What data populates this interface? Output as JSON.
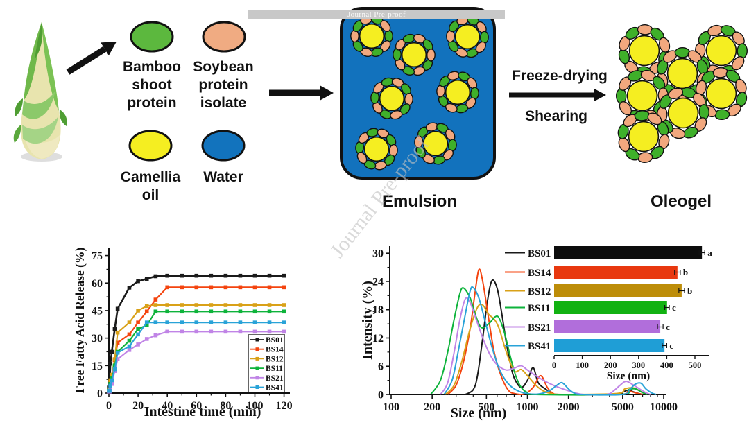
{
  "watermark": {
    "bar_text": "Journal Pre-proof",
    "diagonal_text": "Journal Pre-proof"
  },
  "diagram": {
    "ingredients": [
      {
        "name": "bamboo-shoot-protein",
        "label": [
          "Bamboo",
          "shoot",
          "protein"
        ],
        "color": "#5cb83e"
      },
      {
        "name": "soybean-protein-isolate",
        "label": [
          "Soybean",
          "protein",
          "isolate"
        ],
        "color": "#f0ab82"
      },
      {
        "name": "camellia-oil",
        "label": [
          "Camellia",
          "oil"
        ],
        "color": "#f5ee21"
      },
      {
        "name": "water",
        "label": [
          "Water"
        ],
        "color": "#1273bd"
      }
    ],
    "emulsion_label": "Emulsion",
    "oleogel_label": "Oleogel",
    "process_step1": "Freeze-drying",
    "process_step2": "Shearing",
    "emulsion_box_color": "#1272bd",
    "droplet_colors": {
      "oil": "#f5ee21",
      "coating_green": "#3fb02a",
      "coating_peach": "#f2a87e"
    }
  },
  "chart_data": [
    {
      "id": "ffa_release",
      "type": "line",
      "xlabel": "Intestine time (min)",
      "ylabel": "Free Fatty Acid Release (%)",
      "xlim": [
        0,
        124
      ],
      "ylim": [
        0,
        79
      ],
      "xticks": [
        0,
        20,
        40,
        60,
        80,
        100,
        120
      ],
      "yticks": [
        0,
        15,
        30,
        45,
        60,
        75
      ],
      "grid": false,
      "marker": "square",
      "legend_position": "lower right",
      "x": [
        0.5,
        1,
        2,
        4,
        6,
        14,
        20,
        26,
        32,
        40,
        50,
        60,
        70,
        80,
        90,
        100,
        110,
        120
      ],
      "series": [
        {
          "name": "BS01",
          "color": "#1a1a1a",
          "values": [
            3,
            16,
            22.5,
            35,
            46,
            57.5,
            61,
            62.3,
            63.7,
            64,
            64,
            64,
            64,
            64,
            64,
            64,
            64,
            64
          ]
        },
        {
          "name": "BS14",
          "color": "#f4440f",
          "values": [
            1.5,
            6,
            9,
            18,
            27.5,
            32,
            38.5,
            44.5,
            51,
            57.7,
            57.7,
            57.7,
            57.7,
            57.7,
            57.7,
            57.7,
            57.7,
            57.7
          ]
        },
        {
          "name": "BS12",
          "color": "#d9a118",
          "values": [
            2,
            7,
            10,
            18.5,
            33,
            38.5,
            45,
            47.5,
            48,
            48,
            48,
            48,
            48,
            48,
            48,
            48,
            48,
            48
          ]
        },
        {
          "name": "BS11",
          "color": "#0eb33b",
          "values": [
            1.5,
            5,
            8,
            15,
            22.5,
            28.5,
            35,
            37,
            44.5,
            44.5,
            44.5,
            44.5,
            44.5,
            44.5,
            44.5,
            44.5,
            44.5,
            44.5
          ]
        },
        {
          "name": "BS21",
          "color": "#c084e6",
          "values": [
            0.8,
            2,
            5,
            12,
            18.5,
            23.5,
            26.5,
            29.5,
            31.5,
            33.5,
            33.5,
            33.5,
            33.5,
            33.5,
            33.5,
            33.5,
            33.5,
            33.5
          ]
        },
        {
          "name": "BS41",
          "color": "#29a3d8",
          "values": [
            1.2,
            4,
            7,
            13,
            22,
            25.5,
            32,
            38.5,
            38.5,
            38.5,
            38.5,
            38.5,
            38.5,
            38.5,
            38.5,
            38.5,
            38.5,
            38.5
          ]
        }
      ]
    },
    {
      "id": "size_distribution",
      "type": "line",
      "xscale": "log",
      "xlabel": "Size (nm)",
      "ylabel": "Intensity (%)",
      "xlim": [
        100,
        10300
      ],
      "ylim": [
        0,
        31.5
      ],
      "xticks": [
        100,
        200,
        500,
        1000,
        2000,
        5000,
        10000
      ],
      "minor_xticks": [
        300,
        400,
        600,
        700,
        800,
        900,
        3000,
        4000,
        6000,
        7000,
        8000,
        9000
      ],
      "yticks": [
        0,
        6,
        12,
        18,
        24,
        30
      ],
      "series": [
        {
          "name": "BS01",
          "color": "#1a1a1a",
          "points": [
            [
              350,
              0
            ],
            [
              400,
              1
            ],
            [
              430,
              4
            ],
            [
              470,
              12
            ],
            [
              510,
              20
            ],
            [
              550,
              24.2
            ],
            [
              600,
              22.5
            ],
            [
              650,
              17
            ],
            [
              700,
              11
            ],
            [
              750,
              6.5
            ],
            [
              800,
              3.5
            ],
            [
              900,
              1.5
            ],
            [
              1000,
              3
            ],
            [
              1100,
              5.7
            ],
            [
              1200,
              2.5
            ],
            [
              1350,
              1.2
            ],
            [
              1500,
              0.4
            ],
            [
              1700,
              0
            ],
            [
              4500,
              0
            ],
            [
              5000,
              0.5
            ],
            [
              5500,
              0.9
            ],
            [
              6200,
              0.4
            ],
            [
              7000,
              0
            ]
          ]
        },
        {
          "name": "BS14",
          "color": "#f4440f",
          "points": [
            [
              260,
              0
            ],
            [
              300,
              2
            ],
            [
              340,
              7
            ],
            [
              380,
              14
            ],
            [
              410,
              21
            ],
            [
              440,
              26.5
            ],
            [
              470,
              24
            ],
            [
              520,
              16
            ],
            [
              570,
              9
            ],
            [
              640,
              4
            ],
            [
              720,
              1
            ],
            [
              800,
              0.2
            ],
            [
              950,
              0.1
            ],
            [
              1100,
              1.5
            ],
            [
              1250,
              4
            ],
            [
              1400,
              1.5
            ],
            [
              1550,
              0.2
            ],
            [
              1800,
              0
            ],
            [
              4800,
              0
            ],
            [
              5500,
              0.7
            ],
            [
              6300,
              0.3
            ],
            [
              7000,
              0
            ]
          ]
        },
        {
          "name": "BS12",
          "color": "#d9a118",
          "points": [
            [
              250,
              0
            ],
            [
              290,
              2
            ],
            [
              330,
              7
            ],
            [
              380,
              14
            ],
            [
              430,
              18.5
            ],
            [
              470,
              19
            ],
            [
              520,
              17
            ],
            [
              570,
              16
            ],
            [
              620,
              14
            ],
            [
              700,
              9
            ],
            [
              800,
              5
            ],
            [
              900,
              5.3
            ],
            [
              1000,
              4
            ],
            [
              1150,
              2
            ],
            [
              1300,
              0.8
            ],
            [
              1500,
              0.2
            ],
            [
              1800,
              0
            ],
            [
              4500,
              0.2
            ],
            [
              5200,
              1.2
            ],
            [
              6000,
              1.4
            ],
            [
              6800,
              0.6
            ],
            [
              7500,
              0
            ]
          ]
        },
        {
          "name": "BS11",
          "color": "#0eb33b",
          "points": [
            [
              195,
              0
            ],
            [
              230,
              3
            ],
            [
              260,
              9
            ],
            [
              290,
              16
            ],
            [
              320,
              21.5
            ],
            [
              340,
              22.6
            ],
            [
              380,
              20.5
            ],
            [
              420,
              16.5
            ],
            [
              460,
              14.2
            ],
            [
              520,
              15
            ],
            [
              580,
              16.5
            ],
            [
              620,
              16.2
            ],
            [
              680,
              13
            ],
            [
              750,
              8
            ],
            [
              820,
              4
            ],
            [
              900,
              1.5
            ],
            [
              1000,
              0.4
            ],
            [
              1150,
              0
            ],
            [
              4800,
              0
            ],
            [
              5500,
              1
            ],
            [
              6200,
              1.2
            ],
            [
              7000,
              0.4
            ],
            [
              7600,
              0
            ]
          ]
        },
        {
          "name": "BS21",
          "color": "#c084e6",
          "points": [
            [
              230,
              0
            ],
            [
              260,
              2.5
            ],
            [
              290,
              9
            ],
            [
              320,
              16
            ],
            [
              350,
              20.3
            ],
            [
              380,
              19.5
            ],
            [
              420,
              16
            ],
            [
              470,
              12
            ],
            [
              530,
              8.5
            ],
            [
              600,
              6.3
            ],
            [
              700,
              5.2
            ],
            [
              800,
              5.6
            ],
            [
              900,
              6.1
            ],
            [
              1000,
              5.2
            ],
            [
              1150,
              4
            ],
            [
              1350,
              2.8
            ],
            [
              1600,
              1.8
            ],
            [
              1900,
              1
            ],
            [
              2200,
              0.4
            ],
            [
              2600,
              0
            ],
            [
              3800,
              0
            ],
            [
              4300,
              0.8
            ],
            [
              4800,
              2
            ],
            [
              5300,
              2.8
            ],
            [
              6000,
              2
            ],
            [
              6800,
              1
            ],
            [
              7500,
              0.3
            ],
            [
              8000,
              0
            ]
          ]
        },
        {
          "name": "BS41",
          "color": "#29a3d8",
          "points": [
            [
              245,
              0
            ],
            [
              280,
              3
            ],
            [
              310,
              9
            ],
            [
              350,
              17
            ],
            [
              380,
              22
            ],
            [
              400,
              22.7
            ],
            [
              440,
              20.5
            ],
            [
              490,
              15.5
            ],
            [
              550,
              10
            ],
            [
              620,
              5.5
            ],
            [
              700,
              2.8
            ],
            [
              800,
              1.2
            ],
            [
              950,
              0.3
            ],
            [
              1200,
              0.1
            ],
            [
              1450,
              0.8
            ],
            [
              1650,
              2
            ],
            [
              1800,
              2.5
            ],
            [
              2000,
              1.2
            ],
            [
              2200,
              0.3
            ],
            [
              2500,
              0
            ],
            [
              5000,
              0
            ],
            [
              5600,
              1
            ],
            [
              6200,
              2.2
            ],
            [
              6800,
              2.4
            ],
            [
              7400,
              1.2
            ],
            [
              8200,
              0.3
            ],
            [
              8800,
              0
            ]
          ]
        }
      ]
    },
    {
      "id": "mean_size_bars",
      "type": "bar",
      "orientation": "horizontal",
      "xlabel": "Size (nm)",
      "xlim": [
        0,
        550
      ],
      "xticks": [
        0,
        100,
        200,
        300,
        400,
        500
      ],
      "categories": [
        "BS01",
        "BS14",
        "BS12",
        "BS11",
        "BS21",
        "BS41"
      ],
      "values": [
        525,
        438,
        453,
        401,
        377,
        392
      ],
      "errors": [
        10,
        10,
        10,
        8,
        10,
        8
      ],
      "sig_letters": [
        "a",
        "b",
        "b",
        "c",
        "c",
        "c"
      ],
      "bar_colors": [
        "#0d0d0d",
        "#e8380f",
        "#bd8d09",
        "#12b212",
        "#b16edb",
        "#1f9ed6"
      ],
      "legend_labels": [
        "BS01",
        "BS14",
        "BS12",
        "BS11",
        "BS21",
        "BS41"
      ],
      "legend_line_colors": [
        "#1a1a1a",
        "#f4440f",
        "#d9a118",
        "#0eb33b",
        "#c084e6",
        "#29a3d8"
      ]
    }
  ]
}
